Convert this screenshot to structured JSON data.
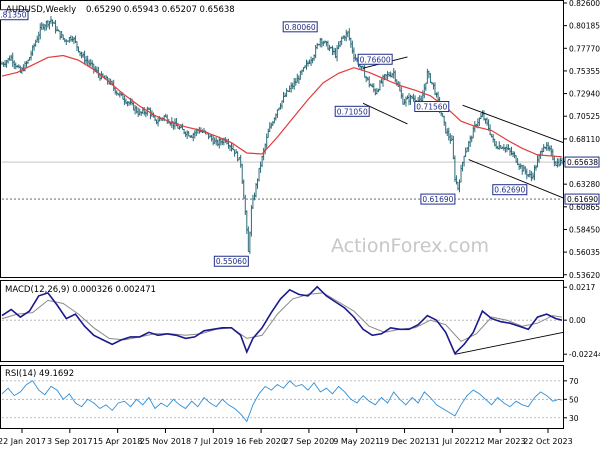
{
  "chart_data": {
    "type": "line",
    "title": "AUDUSD,Weekly",
    "ohlc_label": "0.65290 0.65943 0.65207 0.65638",
    "watermark": "ActionForex.com",
    "x_ticks": [
      "22 Jan 2017",
      "3 Sep 2017",
      "15 Apr 2018",
      "25 Nov 2018",
      "7 Jul 2019",
      "16 Feb 2020",
      "27 Sep 2020",
      "9 May 2021",
      "19 Dec 2021",
      "31 Jul 2022",
      "12 Mar 2023",
      "22 Oct 2023"
    ],
    "price": {
      "ylim": [
        0.537,
        0.826
      ],
      "y_ticks": [
        "0.82600",
        "0.80185",
        "0.77770",
        "0.75355",
        "0.72940",
        "0.70525",
        "0.68110",
        "0.65695",
        "0.63280",
        "0.60865",
        "0.58450",
        "0.56035",
        "0.53620"
      ],
      "current_value": "0.65638",
      "support_value": "0.61690",
      "support_level": 0.6169,
      "price_series": [
        [
          0,
          0.761
        ],
        [
          6,
          0.768
        ],
        [
          12,
          0.752
        ],
        [
          17,
          0.764
        ],
        [
          22,
          0.785
        ],
        [
          26,
          0.801
        ],
        [
          32,
          0.808
        ],
        [
          36,
          0.796
        ],
        [
          41,
          0.786
        ],
        [
          46,
          0.79
        ],
        [
          52,
          0.77
        ],
        [
          58,
          0.76
        ],
        [
          64,
          0.748
        ],
        [
          70,
          0.742
        ],
        [
          76,
          0.729
        ],
        [
          82,
          0.721
        ],
        [
          90,
          0.708
        ],
        [
          96,
          0.712
        ],
        [
          100,
          0.699
        ],
        [
          106,
          0.705
        ],
        [
          112,
          0.697
        ],
        [
          118,
          0.69
        ],
        [
          124,
          0.685
        ],
        [
          128,
          0.691
        ],
        [
          134,
          0.686
        ],
        [
          140,
          0.676
        ],
        [
          146,
          0.681
        ],
        [
          152,
          0.668
        ],
        [
          156,
          0.655
        ],
        [
          159,
          0.603
        ],
        [
          161,
          0.56
        ],
        [
          163,
          0.606
        ],
        [
          168,
          0.647
        ],
        [
          174,
          0.688
        ],
        [
          180,
          0.713
        ],
        [
          186,
          0.73
        ],
        [
          192,
          0.742
        ],
        [
          198,
          0.757
        ],
        [
          204,
          0.772
        ],
        [
          208,
          0.788
        ],
        [
          212,
          0.781
        ],
        [
          218,
          0.771
        ],
        [
          222,
          0.788
        ],
        [
          226,
          0.794
        ],
        [
          230,
          0.77
        ],
        [
          236,
          0.753
        ],
        [
          240,
          0.74
        ],
        [
          244,
          0.731
        ],
        [
          250,
          0.747
        ],
        [
          256,
          0.752
        ],
        [
          262,
          0.721
        ],
        [
          268,
          0.725
        ],
        [
          274,
          0.72
        ],
        [
          278,
          0.751
        ],
        [
          282,
          0.737
        ],
        [
          286,
          0.715
        ],
        [
          290,
          0.69
        ],
        [
          294,
          0.678
        ],
        [
          296,
          0.64
        ],
        [
          298,
          0.629
        ],
        [
          302,
          0.665
        ],
        [
          306,
          0.68
        ],
        [
          310,
          0.698
        ],
        [
          314,
          0.706
        ],
        [
          318,
          0.693
        ],
        [
          322,
          0.674
        ],
        [
          328,
          0.673
        ],
        [
          334,
          0.664
        ],
        [
          340,
          0.649
        ],
        [
          346,
          0.64
        ],
        [
          350,
          0.657
        ],
        [
          354,
          0.675
        ],
        [
          358,
          0.668
        ],
        [
          362,
          0.655
        ],
        [
          366,
          0.657
        ]
      ],
      "ma_series": [
        [
          0,
          0.748
        ],
        [
          10,
          0.752
        ],
        [
          20,
          0.76
        ],
        [
          30,
          0.768
        ],
        [
          40,
          0.77
        ],
        [
          50,
          0.765
        ],
        [
          60,
          0.755
        ],
        [
          70,
          0.742
        ],
        [
          80,
          0.728
        ],
        [
          90,
          0.716
        ],
        [
          100,
          0.706
        ],
        [
          110,
          0.699
        ],
        [
          120,
          0.694
        ],
        [
          130,
          0.69
        ],
        [
          140,
          0.684
        ],
        [
          150,
          0.677
        ],
        [
          160,
          0.666
        ],
        [
          170,
          0.665
        ],
        [
          180,
          0.683
        ],
        [
          190,
          0.703
        ],
        [
          200,
          0.723
        ],
        [
          210,
          0.741
        ],
        [
          220,
          0.751
        ],
        [
          230,
          0.757
        ],
        [
          240,
          0.752
        ],
        [
          250,
          0.745
        ],
        [
          260,
          0.738
        ],
        [
          270,
          0.733
        ],
        [
          280,
          0.727
        ],
        [
          290,
          0.715
        ],
        [
          300,
          0.7
        ],
        [
          310,
          0.694
        ],
        [
          320,
          0.69
        ],
        [
          330,
          0.68
        ],
        [
          340,
          0.671
        ],
        [
          350,
          0.664
        ],
        [
          366,
          0.662
        ]
      ],
      "annotations": [
        {
          "label": "0.81350",
          "bar": 17,
          "price": 0.8135,
          "side": "left"
        },
        {
          "label": "0.80060",
          "bar": 206,
          "price": 0.8006,
          "side": "left"
        },
        {
          "label": "0.76600",
          "bar": 255,
          "price": 0.766,
          "side": "left"
        },
        {
          "label": "0.71050",
          "bar": 240,
          "price": 0.7105,
          "side": "left"
        },
        {
          "label": "0.71560",
          "bar": 292,
          "price": 0.7156,
          "side": "left"
        },
        {
          "label": "0.55060",
          "bar": 161,
          "price": 0.5506,
          "side": "left"
        },
        {
          "label": "0.61690",
          "bar": 296,
          "price": 0.6169,
          "side": "left"
        },
        {
          "label": "0.62690",
          "bar": 343,
          "price": 0.6269,
          "side": "left"
        }
      ],
      "channel_lines": [
        {
          "from": [
            236,
            0.7565
          ],
          "to": [
            265,
            0.7685
          ]
        },
        {
          "from": [
            236,
            0.719
          ],
          "to": [
            265,
            0.697
          ]
        },
        {
          "from": [
            301,
            0.717
          ],
          "to": [
            367,
            0.677
          ]
        },
        {
          "from": [
            305,
            0.659
          ],
          "to": [
            367,
            0.618
          ]
        }
      ]
    },
    "macd": {
      "label": "MACD(12,26,9) 0.000326 0.002471",
      "ylim": [
        -0.0256,
        0.0245
      ],
      "y_ticks": [
        "0.0217",
        "0.00",
        "-0.022445"
      ],
      "macd_series": [
        [
          0,
          0.003
        ],
        [
          6,
          0.007
        ],
        [
          12,
          0.002
        ],
        [
          18,
          0.006
        ],
        [
          24,
          0.016
        ],
        [
          30,
          0.018
        ],
        [
          36,
          0.01
        ],
        [
          42,
          0.001
        ],
        [
          48,
          0.004
        ],
        [
          54,
          -0.004
        ],
        [
          60,
          -0.01
        ],
        [
          66,
          -0.013
        ],
        [
          72,
          -0.016
        ],
        [
          78,
          -0.013
        ],
        [
          84,
          -0.011
        ],
        [
          90,
          -0.011
        ],
        [
          96,
          -0.008
        ],
        [
          102,
          -0.01
        ],
        [
          108,
          -0.009
        ],
        [
          114,
          -0.01
        ],
        [
          120,
          -0.012
        ],
        [
          126,
          -0.011
        ],
        [
          132,
          -0.007
        ],
        [
          138,
          -0.006
        ],
        [
          144,
          -0.005
        ],
        [
          150,
          -0.005
        ],
        [
          156,
          -0.01
        ],
        [
          160,
          -0.021
        ],
        [
          164,
          -0.012
        ],
        [
          170,
          -0.005
        ],
        [
          176,
          0.005
        ],
        [
          182,
          0.014
        ],
        [
          188,
          0.02
        ],
        [
          194,
          0.017
        ],
        [
          200,
          0.016
        ],
        [
          206,
          0.022
        ],
        [
          212,
          0.016
        ],
        [
          218,
          0.012
        ],
        [
          224,
          0.008
        ],
        [
          230,
          0.002
        ],
        [
          236,
          -0.006
        ],
        [
          242,
          -0.01
        ],
        [
          248,
          -0.009
        ],
        [
          254,
          -0.005
        ],
        [
          260,
          -0.006
        ],
        [
          266,
          -0.006
        ],
        [
          272,
          -0.003
        ],
        [
          278,
          0.003
        ],
        [
          284,
          0.0
        ],
        [
          290,
          -0.008
        ],
        [
          296,
          -0.022
        ],
        [
          302,
          -0.016
        ],
        [
          308,
          -0.008
        ],
        [
          314,
          0.006
        ],
        [
          320,
          0.001
        ],
        [
          326,
          -0.001
        ],
        [
          332,
          -0.002
        ],
        [
          338,
          -0.004
        ],
        [
          344,
          -0.006
        ],
        [
          350,
          0.002
        ],
        [
          356,
          0.004
        ],
        [
          362,
          0.001
        ],
        [
          366,
          0.0
        ]
      ],
      "signal_series": [
        [
          0,
          0.001
        ],
        [
          10,
          0.004
        ],
        [
          20,
          0.005
        ],
        [
          30,
          0.013
        ],
        [
          40,
          0.011
        ],
        [
          50,
          0.004
        ],
        [
          60,
          -0.005
        ],
        [
          70,
          -0.012
        ],
        [
          80,
          -0.013
        ],
        [
          90,
          -0.011
        ],
        [
          100,
          -0.009
        ],
        [
          110,
          -0.009
        ],
        [
          120,
          -0.01
        ],
        [
          130,
          -0.009
        ],
        [
          140,
          -0.006
        ],
        [
          150,
          -0.005
        ],
        [
          160,
          -0.012
        ],
        [
          170,
          -0.01
        ],
        [
          180,
          0.004
        ],
        [
          190,
          0.014
        ],
        [
          200,
          0.017
        ],
        [
          210,
          0.018
        ],
        [
          220,
          0.012
        ],
        [
          230,
          0.006
        ],
        [
          240,
          -0.004
        ],
        [
          250,
          -0.008
        ],
        [
          260,
          -0.006
        ],
        [
          270,
          -0.005
        ],
        [
          280,
          0.0
        ],
        [
          290,
          -0.003
        ],
        [
          300,
          -0.014
        ],
        [
          310,
          -0.009
        ],
        [
          320,
          0.002
        ],
        [
          330,
          0.0
        ],
        [
          340,
          -0.004
        ],
        [
          350,
          -0.002
        ],
        [
          360,
          0.003
        ],
        [
          366,
          0.002
        ]
      ],
      "trendline": {
        "from": [
          296,
          -0.0225
        ],
        "to": [
          367,
          -0.008
        ]
      }
    },
    "rsi": {
      "label": "RSI(14) 49.1692",
      "ylim": [
        20,
        85
      ],
      "y_ticks": [
        "70",
        "50",
        "30"
      ],
      "rsi_series": [
        [
          0,
          56
        ],
        [
          4,
          62
        ],
        [
          8,
          54
        ],
        [
          12,
          58
        ],
        [
          16,
          66
        ],
        [
          20,
          70
        ],
        [
          24,
          60
        ],
        [
          28,
          55
        ],
        [
          32,
          64
        ],
        [
          36,
          60
        ],
        [
          40,
          50
        ],
        [
          44,
          56
        ],
        [
          48,
          46
        ],
        [
          52,
          42
        ],
        [
          56,
          50
        ],
        [
          60,
          46
        ],
        [
          64,
          40
        ],
        [
          68,
          44
        ],
        [
          72,
          38
        ],
        [
          76,
          46
        ],
        [
          80,
          48
        ],
        [
          84,
          42
        ],
        [
          88,
          50
        ],
        [
          92,
          44
        ],
        [
          96,
          52
        ],
        [
          100,
          40
        ],
        [
          104,
          46
        ],
        [
          108,
          42
        ],
        [
          112,
          50
        ],
        [
          116,
          44
        ],
        [
          120,
          40
        ],
        [
          124,
          48
        ],
        [
          128,
          42
        ],
        [
          132,
          52
        ],
        [
          136,
          46
        ],
        [
          140,
          42
        ],
        [
          144,
          50
        ],
        [
          148,
          44
        ],
        [
          152,
          40
        ],
        [
          156,
          34
        ],
        [
          160,
          26
        ],
        [
          164,
          44
        ],
        [
          168,
          56
        ],
        [
          172,
          64
        ],
        [
          176,
          60
        ],
        [
          180,
          66
        ],
        [
          184,
          62
        ],
        [
          188,
          70
        ],
        [
          192,
          64
        ],
        [
          196,
          66
        ],
        [
          200,
          60
        ],
        [
          204,
          68
        ],
        [
          208,
          58
        ],
        [
          212,
          62
        ],
        [
          216,
          56
        ],
        [
          220,
          64
        ],
        [
          224,
          58
        ],
        [
          228,
          50
        ],
        [
          232,
          46
        ],
        [
          236,
          54
        ],
        [
          240,
          48
        ],
        [
          244,
          44
        ],
        [
          248,
          52
        ],
        [
          252,
          46
        ],
        [
          256,
          58
        ],
        [
          260,
          50
        ],
        [
          264,
          44
        ],
        [
          268,
          52
        ],
        [
          272,
          46
        ],
        [
          276,
          58
        ],
        [
          280,
          52
        ],
        [
          284,
          44
        ],
        [
          288,
          40
        ],
        [
          292,
          36
        ],
        [
          296,
          32
        ],
        [
          300,
          44
        ],
        [
          304,
          54
        ],
        [
          308,
          60
        ],
        [
          312,
          56
        ],
        [
          316,
          50
        ],
        [
          320,
          44
        ],
        [
          324,
          52
        ],
        [
          328,
          46
        ],
        [
          332,
          42
        ],
        [
          336,
          48
        ],
        [
          340,
          44
        ],
        [
          344,
          42
        ],
        [
          348,
          52
        ],
        [
          352,
          58
        ],
        [
          356,
          54
        ],
        [
          360,
          48
        ],
        [
          364,
          50
        ],
        [
          366,
          49
        ]
      ]
    }
  }
}
